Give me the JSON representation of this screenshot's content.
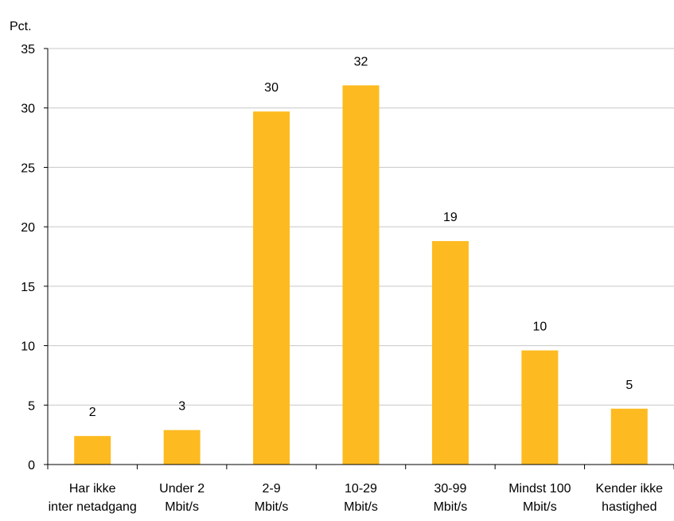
{
  "chart_data": {
    "type": "bar",
    "y_unit_label": "Pct.",
    "categories": [
      [
        "Har ikke",
        "inter netadgang"
      ],
      [
        "Under 2",
        "Mbit/s"
      ],
      [
        "2-9",
        "Mbit/s"
      ],
      [
        "10-29",
        "Mbit/s"
      ],
      [
        "30-99",
        "Mbit/s"
      ],
      [
        "Mindst 100",
        "Mbit/s"
      ],
      [
        "Kender ikke",
        "hastighed"
      ]
    ],
    "values": [
      2.4,
      2.9,
      29.7,
      31.9,
      18.8,
      9.6,
      4.7
    ],
    "data_labels": [
      "2",
      "3",
      "30",
      "32",
      "19",
      "10",
      "5"
    ],
    "ylim": [
      0,
      35
    ],
    "y_ticks": [
      0,
      5,
      10,
      15,
      20,
      25,
      30,
      35
    ],
    "grid": true,
    "bar_color": "#FDBB21",
    "grid_color": "#C8C8C8",
    "legend": "none"
  }
}
